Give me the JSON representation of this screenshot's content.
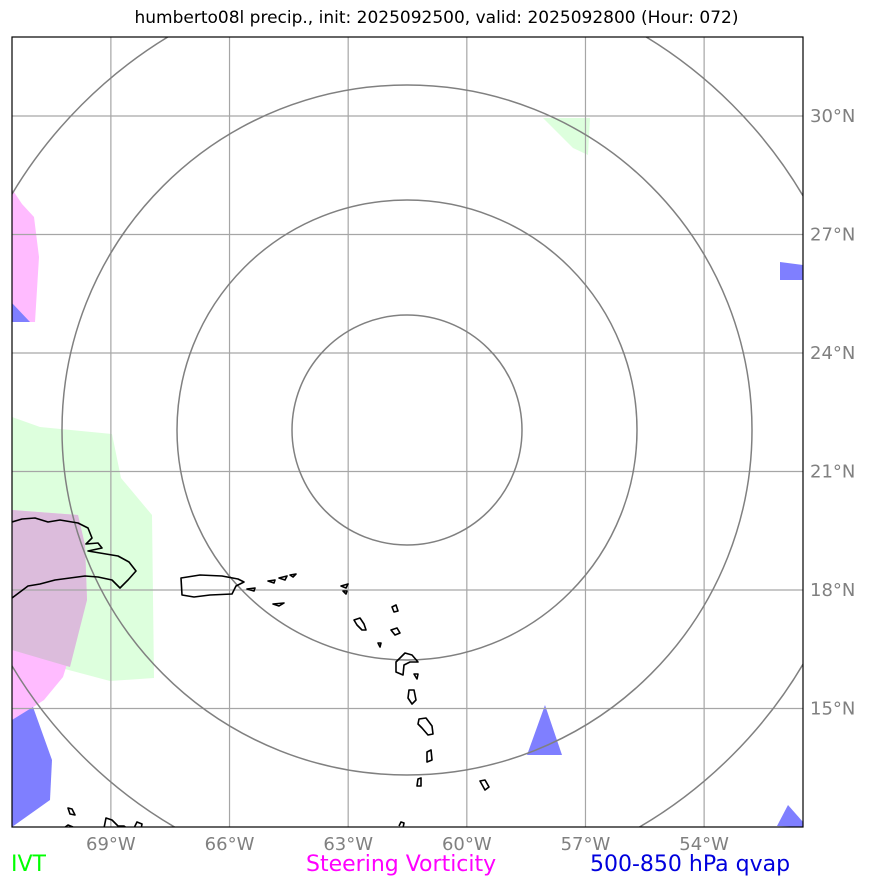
{
  "title": "humberto08l precip., init: 2025092500, valid: 2025092800 (Hour: 072)",
  "map": {
    "lon_range": [
      -71.5,
      -51.5
    ],
    "lat_range": [
      12.0,
      32.0
    ],
    "lon_ticks": [
      {
        "value": -69,
        "label": "69°W"
      },
      {
        "value": -66,
        "label": "66°W"
      },
      {
        "value": -63,
        "label": "63°W"
      },
      {
        "value": -60,
        "label": "60°W"
      },
      {
        "value": -57,
        "label": "57°W"
      },
      {
        "value": -54,
        "label": "54°W"
      }
    ],
    "lat_ticks": [
      {
        "value": 30,
        "label": "30°N"
      },
      {
        "value": 27,
        "label": "27°N"
      },
      {
        "value": 24,
        "label": "24°N"
      },
      {
        "value": 21,
        "label": "21°N"
      },
      {
        "value": 18,
        "label": "18°N"
      },
      {
        "value": 15,
        "label": "15°N"
      }
    ],
    "colors": {
      "ivt": "#00ff00",
      "vorticity": "#ff00ff",
      "qvap": "#0000dd",
      "ivt_fill": "#ddffdd",
      "vort_fill": "#ffbbff",
      "qvap_fill": "#7f7fff",
      "overlap_fill": "#dcbcdc",
      "rings": "#808080",
      "grid": "#a6a6a6",
      "coast": "#000000"
    }
  },
  "legend": {
    "ivt": "IVT",
    "vorticity": "Steering Vorticity",
    "qvap": "500-850 hPa qvap"
  }
}
